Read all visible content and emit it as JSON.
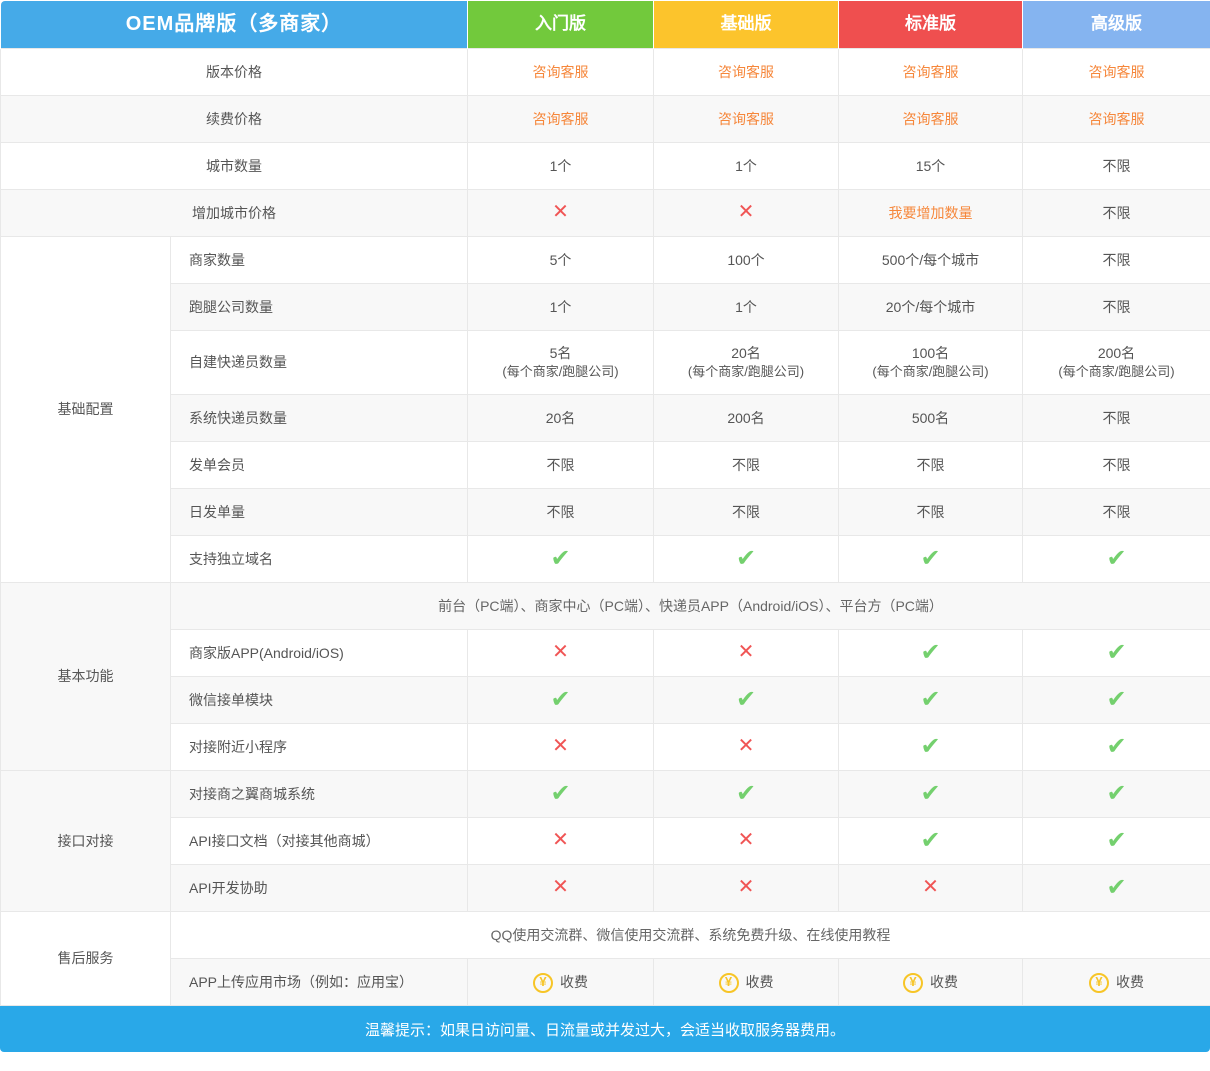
{
  "colors": {
    "brand_blue": "#45aae8",
    "footer_blue": "#29a8e8",
    "plan_green": "#72c93c",
    "plan_yellow": "#fcc42c",
    "plan_red": "#ef4f4f",
    "plan_lightblue": "#85b4f0",
    "link_orange": "#f6873b",
    "check_green": "#74d06e",
    "cross_red": "#f05555",
    "fee_gold": "#f7c527"
  },
  "header": {
    "product_label": "OEM品牌版（多商家）",
    "plans": [
      {
        "label": "入门版",
        "color": "#72c93c"
      },
      {
        "label": "基础版",
        "color": "#fcc42c"
      },
      {
        "label": "标准版",
        "color": "#ef4f4f"
      },
      {
        "label": "高级版",
        "color": "#85b4f0"
      }
    ]
  },
  "rows": [
    {
      "kind": "feature",
      "label": "版本价格",
      "shade": false,
      "cells": [
        {
          "type": "link",
          "t": "咨询客服"
        },
        {
          "type": "link",
          "t": "咨询客服"
        },
        {
          "type": "link",
          "t": "咨询客服"
        },
        {
          "type": "link",
          "t": "咨询客服"
        }
      ]
    },
    {
      "kind": "feature",
      "label": "续费价格",
      "shade": true,
      "cells": [
        {
          "type": "link",
          "t": "咨询客服"
        },
        {
          "type": "link",
          "t": "咨询客服"
        },
        {
          "type": "link",
          "t": "咨询客服"
        },
        {
          "type": "link",
          "t": "咨询客服"
        }
      ]
    },
    {
      "kind": "feature",
      "label": "城市数量",
      "shade": false,
      "cells": [
        {
          "type": "text",
          "t": "1个"
        },
        {
          "type": "text",
          "t": "1个"
        },
        {
          "type": "text",
          "t": "15个"
        },
        {
          "type": "text",
          "t": "不限"
        }
      ]
    },
    {
      "kind": "feature",
      "label": "增加城市价格",
      "shade": true,
      "cells": [
        {
          "type": "cross"
        },
        {
          "type": "cross"
        },
        {
          "type": "link",
          "t": "我要增加数量"
        },
        {
          "type": "text",
          "t": "不限"
        }
      ]
    },
    {
      "kind": "feature",
      "label": "商家数量",
      "shade": false,
      "group": {
        "name": "基础配置",
        "span": 7
      },
      "cells": [
        {
          "type": "text",
          "t": "5个"
        },
        {
          "type": "text",
          "t": "100个"
        },
        {
          "type": "text",
          "t": "500个/每个城市"
        },
        {
          "type": "text",
          "t": "不限"
        }
      ]
    },
    {
      "kind": "feature",
      "label": "跑腿公司数量",
      "shade": true,
      "cells": [
        {
          "type": "text",
          "t": "1个"
        },
        {
          "type": "text",
          "t": "1个"
        },
        {
          "type": "text",
          "t": "20个/每个城市"
        },
        {
          "type": "text",
          "t": "不限"
        }
      ]
    },
    {
      "kind": "feature",
      "label": "自建快递员数量",
      "shade": false,
      "tall": true,
      "cells": [
        {
          "type": "text",
          "t": "5名",
          "sub": "(每个商家/跑腿公司)"
        },
        {
          "type": "text",
          "t": "20名",
          "sub": "(每个商家/跑腿公司)"
        },
        {
          "type": "text",
          "t": "100名",
          "sub": "(每个商家/跑腿公司)"
        },
        {
          "type": "text",
          "t": "200名",
          "sub": "(每个商家/跑腿公司)"
        }
      ]
    },
    {
      "kind": "feature",
      "label": "系统快递员数量",
      "shade": true,
      "cells": [
        {
          "type": "text",
          "t": "20名"
        },
        {
          "type": "text",
          "t": "200名"
        },
        {
          "type": "text",
          "t": "500名"
        },
        {
          "type": "text",
          "t": "不限"
        }
      ]
    },
    {
      "kind": "feature",
      "label": "发单会员",
      "shade": false,
      "cells": [
        {
          "type": "text",
          "t": "不限"
        },
        {
          "type": "text",
          "t": "不限"
        },
        {
          "type": "text",
          "t": "不限"
        },
        {
          "type": "text",
          "t": "不限"
        }
      ]
    },
    {
      "kind": "feature",
      "label": "日发单量",
      "shade": true,
      "cells": [
        {
          "type": "text",
          "t": "不限"
        },
        {
          "type": "text",
          "t": "不限"
        },
        {
          "type": "text",
          "t": "不限"
        },
        {
          "type": "text",
          "t": "不限"
        }
      ]
    },
    {
      "kind": "feature",
      "label": "支持独立域名",
      "shade": false,
      "cells": [
        {
          "type": "check"
        },
        {
          "type": "check"
        },
        {
          "type": "check"
        },
        {
          "type": "check"
        }
      ]
    },
    {
      "kind": "span",
      "shade": true,
      "group": {
        "name": "基本功能",
        "span": 4
      },
      "text": "前台（PC端）、商家中心（PC端）、快递员APP（Android/iOS）、平台方（PC端）"
    },
    {
      "kind": "feature",
      "label": "商家版APP(Android/iOS)",
      "shade": false,
      "cells": [
        {
          "type": "cross"
        },
        {
          "type": "cross"
        },
        {
          "type": "check"
        },
        {
          "type": "check"
        }
      ]
    },
    {
      "kind": "feature",
      "label": "微信接单模块",
      "shade": true,
      "cells": [
        {
          "type": "check"
        },
        {
          "type": "check"
        },
        {
          "type": "check"
        },
        {
          "type": "check"
        }
      ]
    },
    {
      "kind": "feature",
      "label": "对接附近小程序",
      "shade": false,
      "cells": [
        {
          "type": "cross"
        },
        {
          "type": "cross"
        },
        {
          "type": "check"
        },
        {
          "type": "check"
        }
      ]
    },
    {
      "kind": "feature",
      "label": "对接商之翼商城系统",
      "shade": true,
      "group": {
        "name": "接口对接",
        "span": 3
      },
      "cells": [
        {
          "type": "check"
        },
        {
          "type": "check"
        },
        {
          "type": "check"
        },
        {
          "type": "check"
        }
      ]
    },
    {
      "kind": "feature",
      "label": "API接口文档（对接其他商城）",
      "shade": false,
      "cells": [
        {
          "type": "cross"
        },
        {
          "type": "cross"
        },
        {
          "type": "check"
        },
        {
          "type": "check"
        }
      ]
    },
    {
      "kind": "feature",
      "label": "API开发协助",
      "shade": true,
      "cells": [
        {
          "type": "cross"
        },
        {
          "type": "cross"
        },
        {
          "type": "cross"
        },
        {
          "type": "check"
        }
      ]
    },
    {
      "kind": "span",
      "shade": false,
      "group": {
        "name": "售后服务",
        "span": 2
      },
      "text": "QQ使用交流群、微信使用交流群、系统免费升级、在线使用教程"
    },
    {
      "kind": "feature",
      "label": "APP上传应用市场（例如：应用宝）",
      "shade": true,
      "cells": [
        {
          "type": "fee",
          "t": "收费"
        },
        {
          "type": "fee",
          "t": "收费"
        },
        {
          "type": "fee",
          "t": "收费"
        },
        {
          "type": "fee",
          "t": "收费"
        }
      ]
    }
  ],
  "icons": {
    "check": "✔",
    "cross": "✕",
    "yen": "¥"
  },
  "footer": {
    "text": "温馨提示：如果日访问量、日流量或并发过大，会适当收取服务器费用。"
  }
}
